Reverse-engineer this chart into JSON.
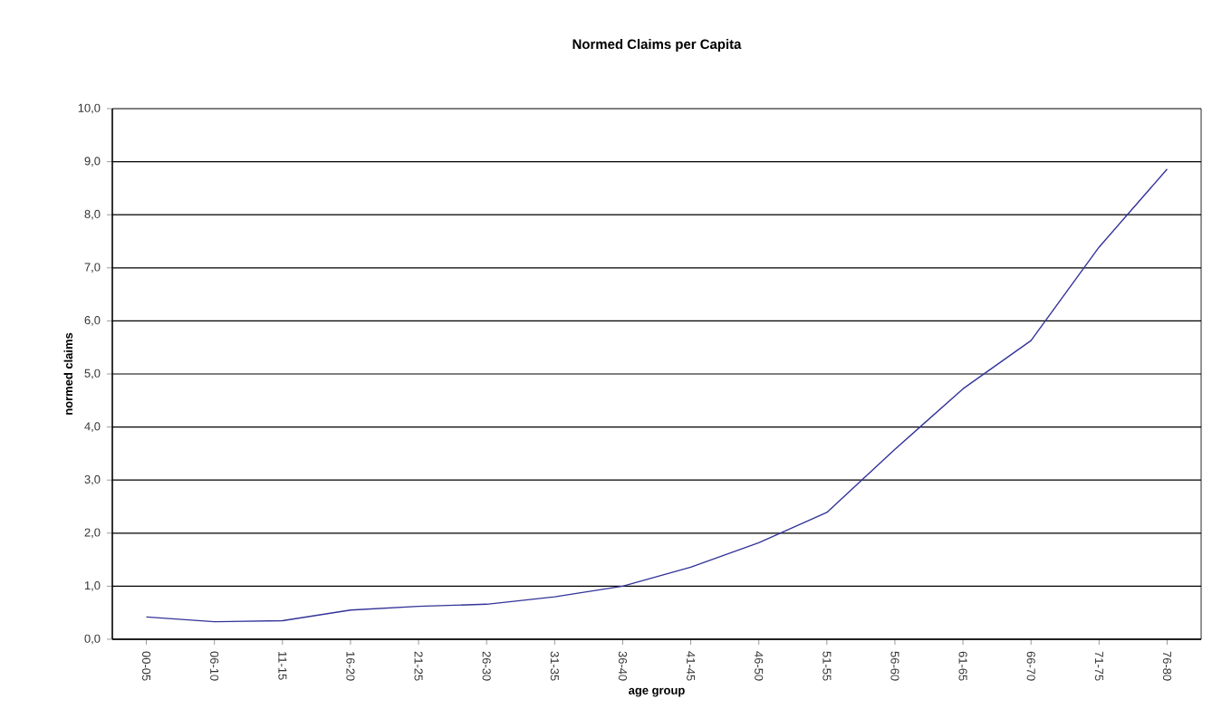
{
  "chart_data": {
    "type": "line",
    "title": "Normed Claims per Capita",
    "xlabel": "age group",
    "ylabel": "normed claims",
    "categories": [
      "00-05",
      "06-10",
      "11-15",
      "16-20",
      "21-25",
      "26-30",
      "31-35",
      "36-40",
      "41-45",
      "46-50",
      "51-55",
      "56-60",
      "61-65",
      "66-70",
      "71-75",
      "76-80"
    ],
    "series": [
      {
        "color": "#333399",
        "values": [
          0.42,
          0.33,
          0.35,
          0.55,
          0.62,
          0.66,
          0.8,
          1.0,
          1.36,
          1.82,
          2.39,
          3.58,
          4.72,
          5.63,
          7.39,
          8.86
        ]
      }
    ],
    "ylim": [
      0,
      10
    ],
    "yticks": [
      {
        "value": 0,
        "label": "0,0"
      },
      {
        "value": 1,
        "label": "1,0"
      },
      {
        "value": 2,
        "label": "2,0"
      },
      {
        "value": 3,
        "label": "3,0"
      },
      {
        "value": 4,
        "label": "4,0"
      },
      {
        "value": 5,
        "label": "5,0"
      },
      {
        "value": 6,
        "label": "6,0"
      },
      {
        "value": 7,
        "label": "7,0"
      },
      {
        "value": 8,
        "label": "8,0"
      },
      {
        "value": 9,
        "label": "9,0"
      },
      {
        "value": 10,
        "label": "10,0"
      }
    ],
    "grid": "y",
    "marker": "none",
    "line_style": "solid"
  }
}
